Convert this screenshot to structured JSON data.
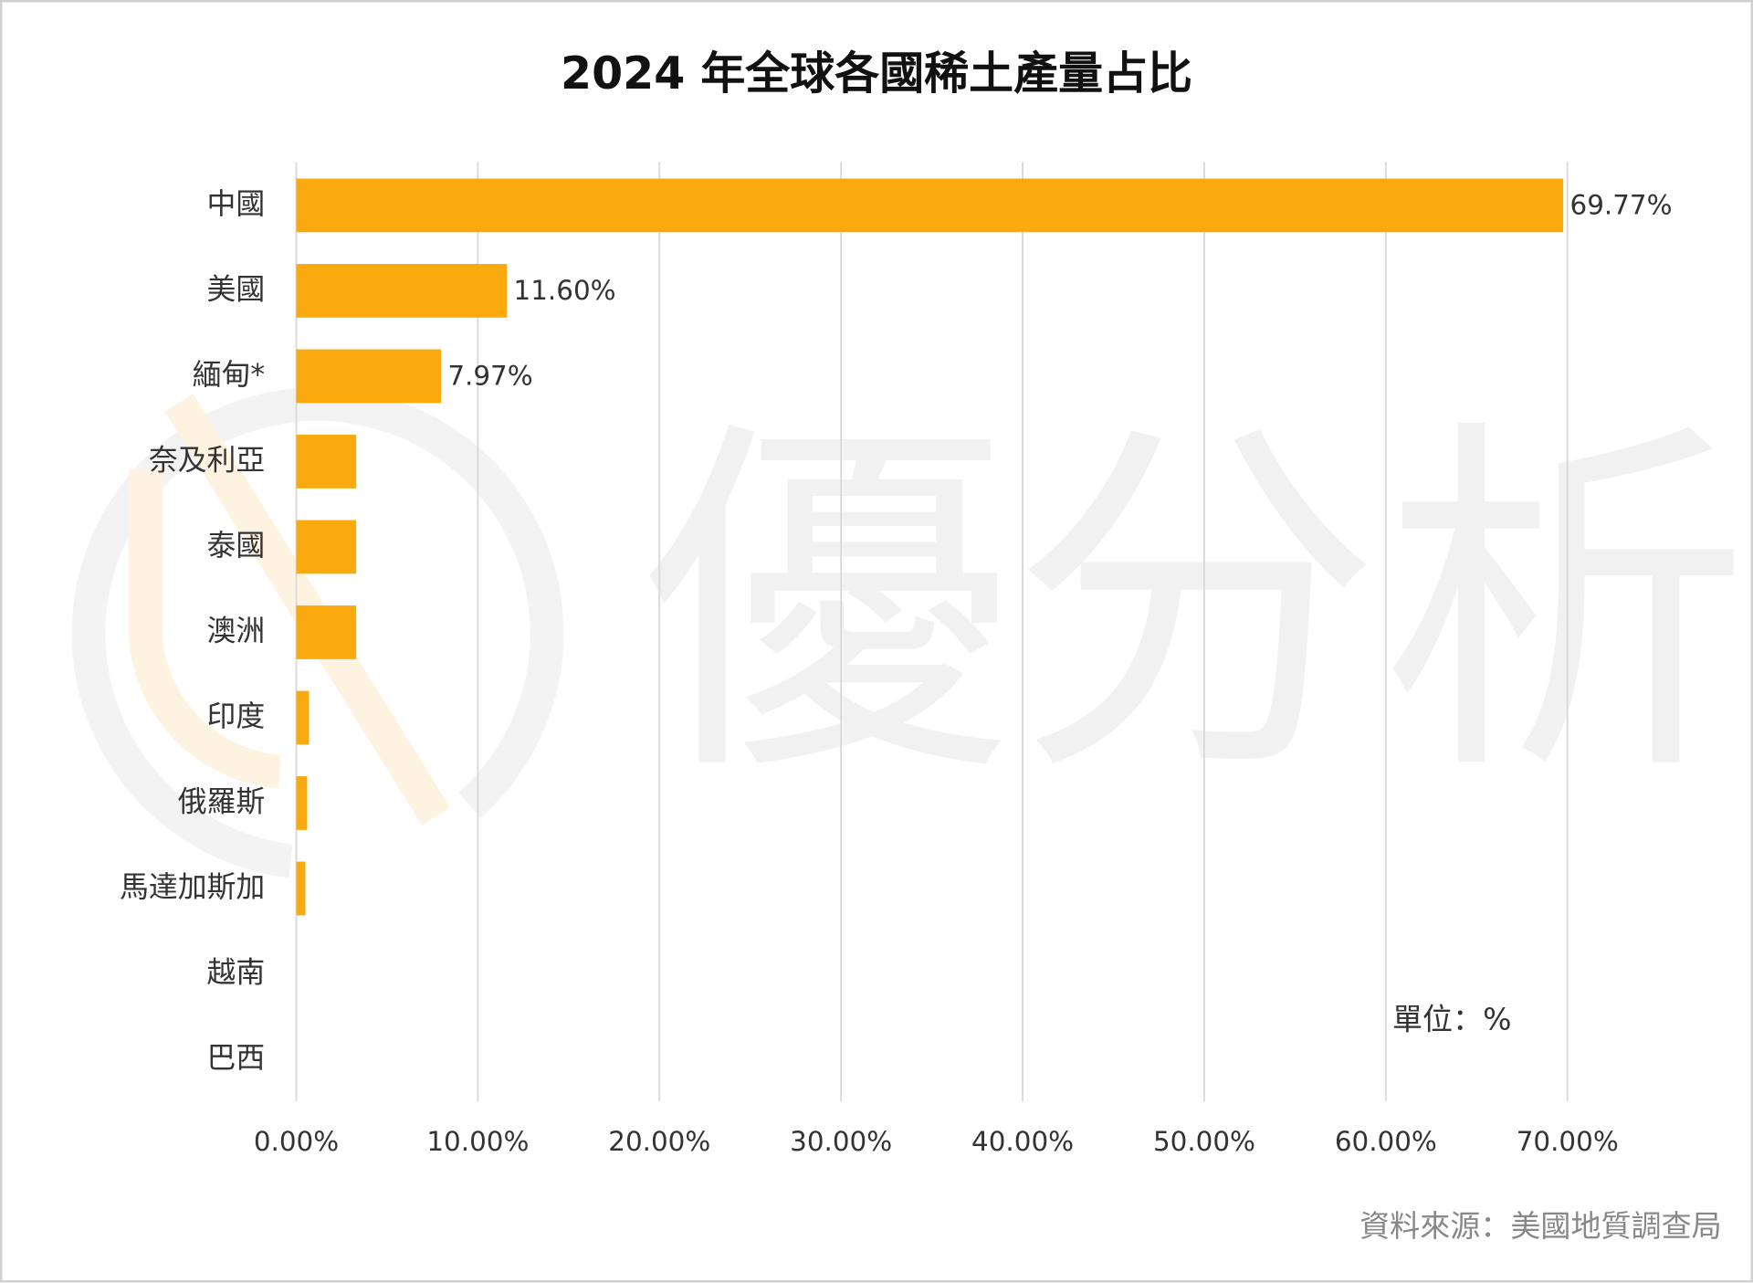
{
  "chart_data": {
    "type": "bar",
    "orientation": "horizontal",
    "title": "2024 年全球各國稀土產量占比",
    "categories": [
      "中國",
      "美國",
      "緬甸*",
      "奈及利亞",
      "泰國",
      "澳洲",
      "印度",
      "俄羅斯",
      "馬達加斯加",
      "越南",
      "巴西"
    ],
    "values": [
      69.77,
      11.6,
      7.97,
      3.3,
      3.3,
      3.3,
      0.7,
      0.6,
      0.5,
      0,
      0
    ],
    "value_labels": [
      "69.77%",
      "11.60%",
      "7.97%",
      null,
      null,
      null,
      null,
      null,
      null,
      null,
      null
    ],
    "color": "#FAA90F",
    "xlim": [
      0,
      70
    ],
    "xticks": [
      {
        "value": 0,
        "label": "0.00%"
      },
      {
        "value": 10,
        "label": "10.00%"
      },
      {
        "value": 20,
        "label": "20.00%"
      },
      {
        "value": 30,
        "label": "30.00%"
      },
      {
        "value": 40,
        "label": "40.00%"
      },
      {
        "value": 50,
        "label": "50.00%"
      },
      {
        "value": 60,
        "label": "60.00%"
      },
      {
        "value": 70,
        "label": "70.00%"
      }
    ],
    "grid": true,
    "unit_note": "單位：%",
    "source": "資料來源：美國地質調查局",
    "watermark": "優分析"
  }
}
